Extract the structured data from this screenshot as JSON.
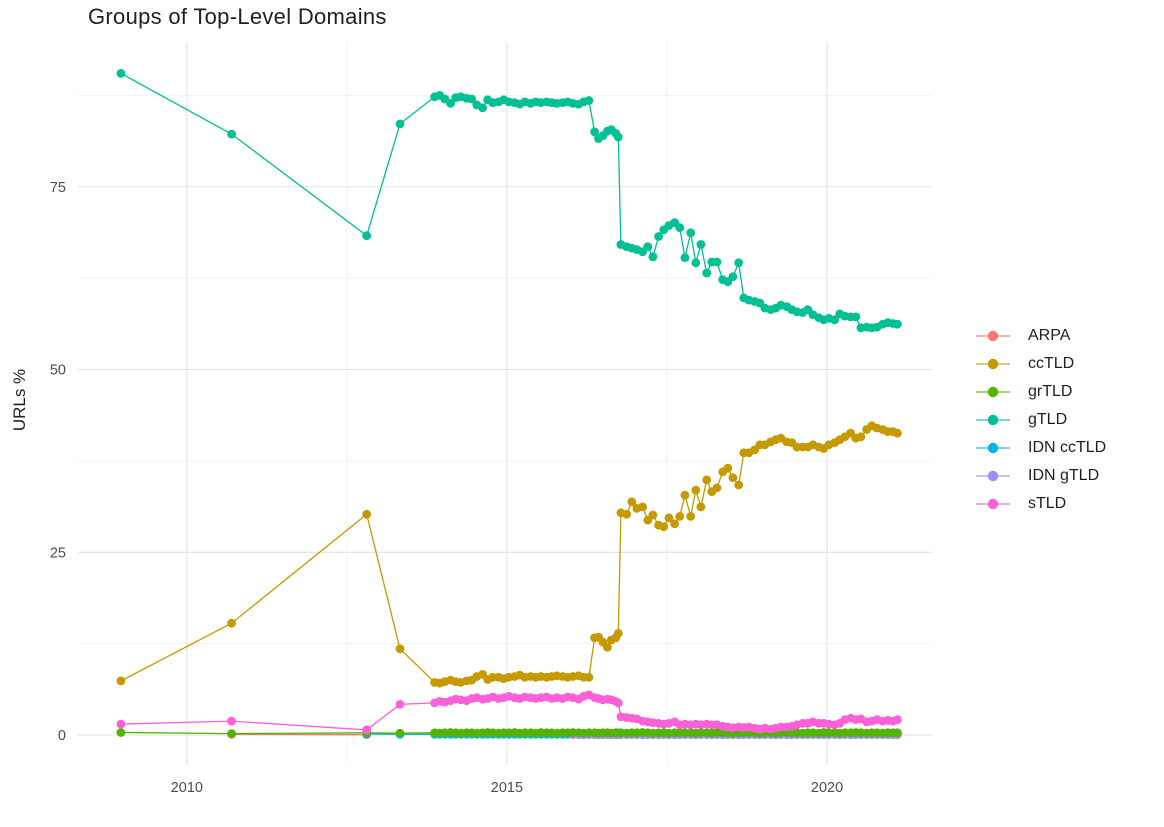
{
  "chart_data": {
    "type": "line",
    "title": "Groups of Top-Level Domains",
    "xlabel": "",
    "ylabel": "URLs %",
    "x_range": [
      2008.3,
      2021.64
    ],
    "y_range": [
      -4.1,
      94.8
    ],
    "x_ticks": [
      2010,
      2015,
      2020
    ],
    "x_minor": [
      2012.5,
      2017.5
    ],
    "y_ticks": [
      0,
      25,
      50,
      75
    ],
    "y_minor": [
      12.5,
      37.5,
      62.5,
      87.5
    ],
    "grid": "major+minor",
    "legend_position": "right",
    "legend_order": [
      "ARPA",
      "ccTLD",
      "grTLD",
      "gTLD",
      "IDN ccTLD",
      "IDN gTLD",
      "sTLD"
    ],
    "colors": {
      "ARPA": "#F8766D",
      "ccTLD": "#C49A00",
      "grTLD": "#53B400",
      "gTLD": "#00C094",
      "IDN ccTLD": "#00B6EB",
      "IDN gTLD": "#A58AFF",
      "sTLD": "#FB61D7"
    },
    "draw_order": [
      "ARPA",
      "IDN ccTLD",
      "IDN gTLD",
      "grTLD",
      "ccTLD",
      "gTLD",
      "sTLD"
    ],
    "dense_x": [
      2013.87,
      2013.95,
      2014.03,
      2014.12,
      2014.2,
      2014.28,
      2014.37,
      2014.45,
      2014.53,
      2014.62,
      2014.7,
      2014.78,
      2014.87,
      2014.95,
      2015.03,
      2015.12,
      2015.2,
      2015.28,
      2015.37,
      2015.45,
      2015.53,
      2015.62,
      2015.7,
      2015.78,
      2015.87,
      2015.95,
      2016.03,
      2016.12,
      2016.2,
      2016.28,
      2016.37,
      2016.43,
      2016.5,
      2016.57,
      2016.63,
      2016.7,
      2016.74,
      2016.78,
      2016.87,
      2016.95,
      2017.03,
      2017.12,
      2017.2,
      2017.28,
      2017.37,
      2017.45,
      2017.53,
      2017.62,
      2017.7,
      2017.78,
      2017.87,
      2017.95,
      2018.03,
      2018.12,
      2018.2,
      2018.28,
      2018.37,
      2018.45,
      2018.53,
      2018.62,
      2018.7,
      2018.78,
      2018.87,
      2018.95,
      2019.03,
      2019.12,
      2019.2,
      2019.28,
      2019.37,
      2019.45,
      2019.53,
      2019.62,
      2019.7,
      2019.78,
      2019.87,
      2019.95,
      2020.03,
      2020.12,
      2020.2,
      2020.28,
      2020.37,
      2020.45,
      2020.53,
      2020.62,
      2020.7,
      2020.78,
      2020.87,
      2020.95,
      2021.03,
      2021.1
    ],
    "early_points": {
      "ARPA": [
        [
          2010.7,
          0.1
        ],
        [
          2012.81,
          0.05
        ]
      ],
      "ccTLD": [
        [
          2008.97,
          7.4
        ],
        [
          2010.7,
          15.3
        ],
        [
          2012.81,
          30.2
        ],
        [
          2013.33,
          11.8
        ]
      ],
      "grTLD": [
        [
          2008.97,
          0.35
        ],
        [
          2010.7,
          0.2
        ],
        [
          2012.81,
          0.3
        ],
        [
          2013.33,
          0.25
        ]
      ],
      "gTLD": [
        [
          2008.97,
          90.5
        ],
        [
          2010.7,
          82.2
        ],
        [
          2012.81,
          68.3
        ],
        [
          2013.33,
          83.6
        ]
      ],
      "IDN ccTLD": [
        [
          2012.81,
          0.15
        ],
        [
          2013.33,
          0.1
        ]
      ],
      "IDN gTLD": [],
      "sTLD": [
        [
          2008.97,
          1.5
        ],
        [
          2010.7,
          1.9
        ],
        [
          2012.81,
          0.7
        ],
        [
          2013.33,
          4.2
        ]
      ]
    },
    "dense_values": {
      "gTLD": [
        87.3,
        87.5,
        87.0,
        86.4,
        87.2,
        87.3,
        87.1,
        87.0,
        86.2,
        85.8,
        86.9,
        86.5,
        86.6,
        86.9,
        86.6,
        86.5,
        86.3,
        86.6,
        86.4,
        86.6,
        86.5,
        86.6,
        86.5,
        86.4,
        86.5,
        86.6,
        86.4,
        86.3,
        86.6,
        86.8,
        82.5,
        81.6,
        82.0,
        82.6,
        82.8,
        82.3,
        81.8,
        67.1,
        66.8,
        66.6,
        66.4,
        66.1,
        66.8,
        65.4,
        68.2,
        69.1,
        69.7,
        70.1,
        69.4,
        65.3,
        68.7,
        64.6,
        67.1,
        63.2,
        64.7,
        64.7,
        62.3,
        62.0,
        62.7,
        64.6,
        59.8,
        59.5,
        59.3,
        59.1,
        58.4,
        58.2,
        58.4,
        58.8,
        58.6,
        58.2,
        57.9,
        57.8,
        58.2,
        57.5,
        57.1,
        56.8,
        57.0,
        56.8,
        57.6,
        57.3,
        57.2,
        57.2,
        55.7,
        55.8,
        55.7,
        55.8,
        56.2,
        56.4,
        56.3,
        56.2
      ],
      "ccTLD": [
        7.2,
        7.1,
        7.3,
        7.5,
        7.3,
        7.2,
        7.4,
        7.5,
        8.0,
        8.3,
        7.6,
        7.9,
        7.9,
        7.7,
        7.9,
        8.0,
        8.2,
        7.9,
        8.0,
        7.9,
        8.0,
        7.9,
        8.0,
        8.1,
        8.0,
        7.9,
        8.0,
        8.1,
        7.9,
        7.9,
        13.3,
        13.4,
        12.7,
        12.0,
        13.0,
        13.3,
        13.9,
        30.4,
        30.2,
        31.9,
        31.0,
        31.2,
        29.4,
        30.1,
        28.7,
        28.5,
        29.7,
        28.9,
        29.9,
        32.8,
        29.9,
        33.5,
        31.2,
        34.9,
        33.3,
        33.8,
        36.0,
        36.5,
        35.2,
        34.2,
        38.6,
        38.6,
        39.0,
        39.7,
        39.7,
        40.1,
        40.4,
        40.6,
        40.1,
        40.0,
        39.4,
        39.4,
        39.4,
        39.7,
        39.4,
        39.2,
        39.7,
        40.0,
        40.4,
        40.8,
        41.3,
        40.6,
        40.8,
        41.8,
        42.3,
        42.0,
        41.8,
        41.5,
        41.5,
        41.3
      ],
      "sTLD": [
        4.4,
        4.6,
        4.5,
        4.7,
        4.9,
        4.8,
        4.7,
        5.0,
        5.1,
        4.9,
        5.0,
        5.2,
        5.0,
        5.1,
        5.3,
        5.1,
        5.0,
        5.2,
        5.1,
        5.0,
        5.1,
        5.2,
        5.0,
        5.1,
        5.0,
        5.2,
        5.1,
        4.9,
        5.3,
        5.5,
        5.1,
        5.0,
        4.8,
        4.9,
        4.8,
        4.6,
        4.4,
        2.5,
        2.4,
        2.3,
        2.2,
        1.9,
        1.8,
        1.7,
        1.6,
        1.5,
        1.6,
        1.8,
        1.4,
        1.5,
        1.4,
        1.5,
        1.4,
        1.5,
        1.4,
        1.4,
        1.2,
        1.1,
        1.0,
        1.1,
        1.0,
        1.1,
        0.95,
        0.8,
        0.95,
        0.8,
        0.95,
        1.1,
        1.1,
        1.2,
        1.4,
        1.6,
        1.6,
        1.8,
        1.6,
        1.6,
        1.5,
        1.4,
        1.6,
        2.1,
        2.3,
        2.1,
        2.2,
        1.8,
        1.9,
        2.1,
        1.9,
        2.0,
        1.9,
        2.1
      ],
      "grTLD": [
        0.3,
        0.25,
        0.3,
        0.35,
        0.3,
        0.25,
        0.3,
        0.3,
        0.25,
        0.3,
        0.35,
        0.3,
        0.25,
        0.3,
        0.3,
        0.35,
        0.25,
        0.3,
        0.3,
        0.25,
        0.35,
        0.3,
        0.3,
        0.25,
        0.3,
        0.3,
        0.35,
        0.3,
        0.25,
        0.3,
        0.3,
        0.25,
        0.3,
        0.3,
        0.25,
        0.3,
        0.3,
        0.3,
        0.25,
        0.3,
        0.3,
        0.35,
        0.3,
        0.25,
        0.3,
        0.3,
        0.25,
        0.3,
        0.35,
        0.3,
        0.3,
        0.25,
        0.3,
        0.3,
        0.25,
        0.35,
        0.3,
        0.3,
        0.25,
        0.3,
        0.3,
        0.35,
        0.3,
        0.25,
        0.3,
        0.3,
        0.25,
        0.3,
        0.35,
        0.3,
        0.3,
        0.25,
        0.3,
        0.3,
        0.25,
        0.35,
        0.3,
        0.3,
        0.25,
        0.3,
        0.3,
        0.35,
        0.3,
        0.25,
        0.3,
        0.3,
        0.25,
        0.3,
        0.3,
        0.3
      ],
      "IDN ccTLD": [
        0.1,
        0.1,
        0.1,
        0.1,
        0.1,
        0.1,
        0.1,
        0.1,
        0.1,
        0.1,
        0.1,
        0.1,
        0.1,
        0.1,
        0.1,
        0.1,
        0.1,
        0.1,
        0.1,
        0.1,
        0.1,
        0.1,
        0.1,
        0.1,
        0.1,
        0.1,
        0.1,
        0.1,
        0.1,
        0.1,
        0.1,
        0.1,
        0.1,
        0.1,
        0.1,
        0.1,
        0.1,
        0.1,
        0.1,
        0.1,
        0.1,
        0.1,
        0.1,
        0.1,
        0.1,
        0.1,
        0.1,
        0.1,
        0.1,
        0.1,
        0.1,
        0.1,
        0.1,
        0.1,
        0.1,
        0.1,
        0.1,
        0.1,
        0.1,
        0.1,
        0.1,
        0.1,
        0.1,
        0.1,
        0.1,
        0.1,
        0.1,
        0.1,
        0.1,
        0.1,
        0.1,
        0.1,
        0.1,
        0.1,
        0.1,
        0.1,
        0.1,
        0.1,
        0.1,
        0.1,
        0.1,
        0.1,
        0.1,
        0.1,
        0.1,
        0.1,
        0.1,
        0.12,
        0.12,
        0.15
      ],
      "IDN gTLD": [
        null,
        null,
        null,
        null,
        null,
        null,
        null,
        null,
        null,
        null,
        null,
        null,
        null,
        null,
        null,
        null,
        null,
        null,
        null,
        null,
        null,
        null,
        null,
        null,
        null,
        null,
        0.05,
        0.05,
        0.05,
        0.05,
        0.05,
        0.05,
        0.05,
        0.05,
        0.05,
        0.05,
        0.05,
        0.05,
        0.05,
        0.05,
        0.05,
        0.05,
        0.05,
        0.05,
        0.05,
        0.05,
        0.05,
        0.05,
        0.05,
        0.05,
        0.05,
        0.05,
        0.05,
        0.05,
        0.05,
        0.05,
        0.05,
        0.05,
        0.05,
        0.05,
        0.05,
        0.05,
        0.05,
        0.05,
        0.05,
        0.05,
        0.05,
        0.05,
        0.05,
        0.05,
        0.05,
        0.05,
        0.05,
        0.05,
        0.05,
        0.05,
        0.05,
        0.05,
        0.05,
        0.05,
        0.05,
        0.05,
        0.05,
        0.05,
        0.05,
        0.05,
        0.05,
        0.05,
        0.05,
        0.05
      ]
    }
  }
}
